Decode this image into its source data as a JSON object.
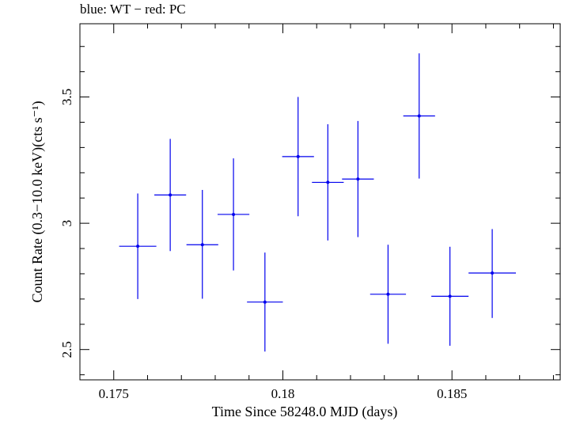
{
  "chart_data": {
    "type": "scatter",
    "title": "blue: WT − red: PC",
    "xlabel": "Time Since 58248.0 MJD (days)",
    "ylabel": "Count Rate (0.3−10.0 keV)(cts s⁻¹)",
    "xlim": [
      0.174,
      0.1882
    ],
    "ylim": [
      2.38,
      3.79
    ],
    "xticks": [
      {
        "value": 0.175,
        "label": "0.175"
      },
      {
        "value": 0.18,
        "label": "0.18"
      },
      {
        "value": 0.185,
        "label": "0.185"
      }
    ],
    "yticks": [
      {
        "value": 2.5,
        "label": "2.5"
      },
      {
        "value": 3.0,
        "label": "3"
      },
      {
        "value": 3.5,
        "label": "3.5"
      }
    ],
    "grid": false,
    "series": [
      {
        "color": "#0000ee",
        "points": [
          {
            "x": 0.17571,
            "y": 2.909,
            "xerr": 0.00055,
            "yerr_low": 0.209,
            "yerr_high": 0.209
          },
          {
            "x": 0.17667,
            "y": 3.112,
            "xerr": 0.00047,
            "yerr_low": 0.222,
            "yerr_high": 0.222
          },
          {
            "x": 0.17762,
            "y": 2.915,
            "xerr": 0.00047,
            "yerr_low": 0.214,
            "yerr_high": 0.217
          },
          {
            "x": 0.17854,
            "y": 3.035,
            "xerr": 0.00047,
            "yerr_low": 0.222,
            "yerr_high": 0.222
          },
          {
            "x": 0.17947,
            "y": 2.688,
            "xerr": 0.00053,
            "yerr_low": 0.196,
            "yerr_high": 0.196
          },
          {
            "x": 0.18045,
            "y": 3.264,
            "xerr": 0.00047,
            "yerr_low": 0.236,
            "yerr_high": 0.236
          },
          {
            "x": 0.18133,
            "y": 3.162,
            "xerr": 0.00047,
            "yerr_low": 0.23,
            "yerr_high": 0.23
          },
          {
            "x": 0.18222,
            "y": 3.175,
            "xerr": 0.00047,
            "yerr_low": 0.23,
            "yerr_high": 0.23
          },
          {
            "x": 0.18311,
            "y": 2.719,
            "xerr": 0.00053,
            "yerr_low": 0.196,
            "yerr_high": 0.196
          },
          {
            "x": 0.18403,
            "y": 3.425,
            "xerr": 0.00047,
            "yerr_low": 0.248,
            "yerr_high": 0.248
          },
          {
            "x": 0.18494,
            "y": 2.711,
            "xerr": 0.00055,
            "yerr_low": 0.196,
            "yerr_high": 0.196
          },
          {
            "x": 0.18619,
            "y": 2.803,
            "xerr": 0.0007,
            "yerr_low": 0.178,
            "yerr_high": 0.174
          }
        ]
      }
    ]
  }
}
